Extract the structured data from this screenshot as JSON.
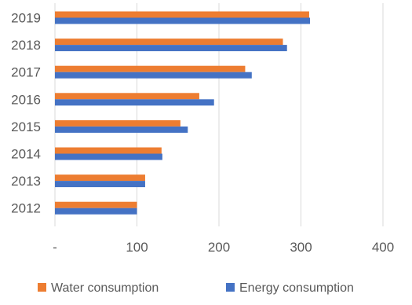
{
  "chart_data": {
    "type": "bar",
    "orientation": "horizontal",
    "categories": [
      "2012",
      "2013",
      "2014",
      "2015",
      "2016",
      "2017",
      "2018",
      "2019"
    ],
    "series": [
      {
        "name": "Water consumption",
        "color": "#ED7D31",
        "values": [
          100,
          110,
          130,
          153,
          176,
          232,
          278,
          310
        ]
      },
      {
        "name": "Energy consumption",
        "color": "#4472C4",
        "values": [
          100,
          110,
          131,
          162,
          194,
          240,
          283,
          311
        ]
      }
    ],
    "x_ticks": [
      0,
      100,
      200,
      300,
      400
    ],
    "x_tick_labels": [
      "-",
      "100",
      "200",
      "300",
      "400"
    ],
    "xlim": [
      0,
      400
    ],
    "grid": "vertical",
    "legend_position": "bottom",
    "title": "",
    "xlabel": "",
    "ylabel": ""
  }
}
